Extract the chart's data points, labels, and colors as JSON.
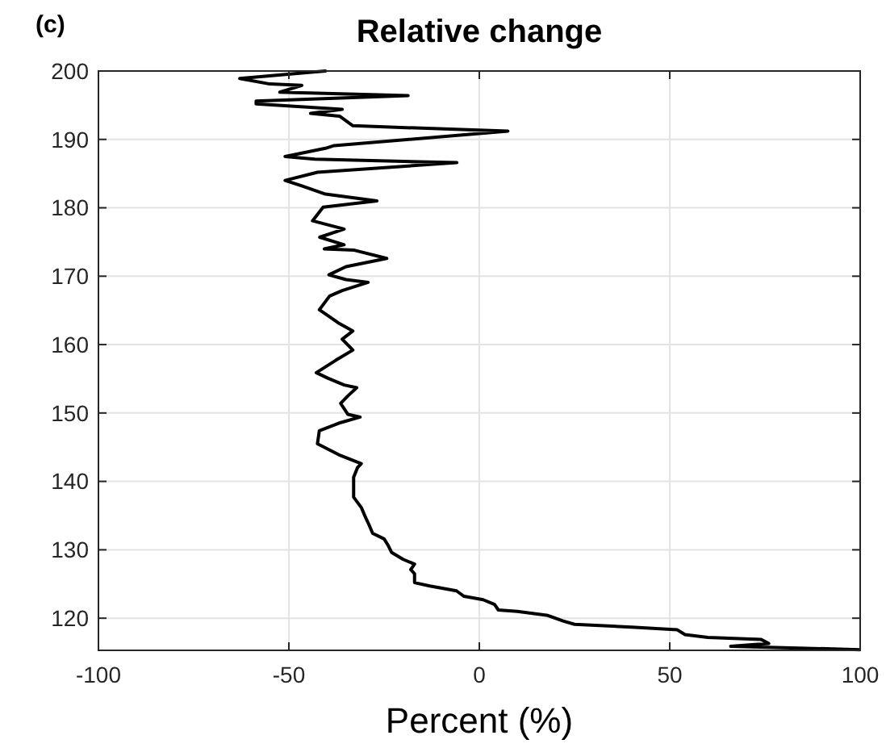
{
  "chart_data": {
    "type": "line",
    "title": "Relative change",
    "xlabel": "Percent (%)",
    "annotations": [
      "(c)"
    ],
    "xlim": [
      -100,
      100
    ],
    "xticks": [
      -100,
      -50,
      0,
      50,
      100
    ],
    "ylim": [
      115.3,
      200
    ],
    "yticks": [
      120,
      130,
      140,
      150,
      160,
      170,
      180,
      190,
      200
    ],
    "grid": true,
    "marker": "none",
    "line_style": "solid",
    "series": [
      {
        "color": "#000000",
        "x": [
          100,
          66,
          76,
          74,
          60,
          54,
          52,
          40,
          25,
          22,
          18,
          10,
          5,
          4,
          1,
          -4,
          -6,
          -13,
          -17,
          -17,
          -18,
          -17,
          -20,
          -23,
          -24,
          -25,
          -28,
          -29,
          -30,
          -31,
          -33,
          -33,
          -33,
          -32,
          -31,
          -36.9,
          -42.5,
          -42,
          -36.4,
          -31.3,
          -34.5,
          -36.4,
          -34.5,
          -32.2,
          -35.5,
          -39.8,
          -42.8,
          -37.7,
          -33.2,
          -36,
          -33.2,
          -37.1,
          -42,
          -39.3,
          -36,
          -29.2,
          -35,
          -39.5,
          -35,
          -24.3,
          -32.8,
          -40.7,
          -35.5,
          -41.9,
          -35.5,
          -43.8,
          -41,
          -26.9,
          -40.4,
          -46.6,
          -51,
          -42.5,
          -5.9,
          -43.2,
          -51,
          -40.4,
          -38.1,
          7.5,
          -33.2,
          -36.7,
          -44.3,
          -36,
          -58.6,
          -58.6,
          -18.7,
          -52.4,
          -46.6,
          -55,
          -62.9,
          -46.6,
          -40.4
        ],
        "values": [
          115.4,
          115.9,
          116.3,
          116.9,
          117.2,
          117.6,
          118.3,
          118.7,
          119.1,
          119.6,
          120.4,
          121,
          121.2,
          122,
          122.7,
          123.2,
          124,
          124.7,
          125.2,
          126.5,
          127.1,
          127.9,
          128.6,
          129.6,
          130.7,
          131.6,
          132.4,
          133.7,
          134.9,
          136.2,
          137.7,
          139.3,
          140.6,
          142,
          142.6,
          143.9,
          145.5,
          147.4,
          148.6,
          149.4,
          149.8,
          151.4,
          152.5,
          153.7,
          154.1,
          155.1,
          155.9,
          157.7,
          159.2,
          160.8,
          162,
          163.2,
          165.1,
          167.1,
          167.9,
          169.1,
          169.5,
          170.2,
          171.4,
          172.6,
          173.8,
          174,
          174.6,
          175.7,
          176.9,
          178.1,
          180.1,
          181,
          182,
          183.2,
          184,
          185.2,
          186.6,
          187.1,
          187.5,
          188.7,
          189.1,
          191.2,
          192,
          193.4,
          193.8,
          194.4,
          195.2,
          195.6,
          196.4,
          196.9,
          197.9,
          198.1,
          198.9,
          199.7,
          200
        ]
      }
    ]
  }
}
